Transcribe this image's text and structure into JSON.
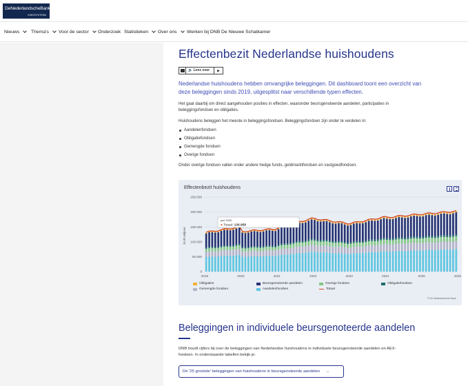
{
  "logo": {
    "name": "DeNederlandscheBank",
    "sub": "EUROSYSTEEM"
  },
  "nav": [
    {
      "label": "Nieuws",
      "dropdown": true
    },
    {
      "label": "Thema's",
      "dropdown": true
    },
    {
      "label": "Voor de sector",
      "dropdown": true
    },
    {
      "label": "Onderzoek",
      "dropdown": false
    },
    {
      "label": "Statistieken",
      "dropdown": true
    },
    {
      "label": "Over ons",
      "dropdown": true
    },
    {
      "label": "Werken bij DNB",
      "dropdown": false
    },
    {
      "label": "De Nieuwe Schatkamer",
      "dropdown": false
    }
  ],
  "page": {
    "title": "Effectenbezit Nederlandse huishoudens",
    "readspeaker": "Lees voor",
    "intro": "Nederlandse huishoudens hebben omvangrijke beleggingen. Dit dashboard toont een overzicht van deze beleggingen sinds 2019, uitgesplitst naar verschillende typen effecten.",
    "p1": "Het gaat daarbij om direct aangehouden posities in effecten, waaronder beursgenoteerde aandelen, participaties in beleggingsfondsen en obligaties.",
    "p2": "Huishoudens beleggen het meeste in beleggingsfondsen. Beleggingsfondsen zijn onder te verdelen in:",
    "list": [
      "Aandelenfondsen",
      "Obligatiefondsen",
      "Gemengde fondsen",
      "Overige fondsen"
    ],
    "p3": "Onder overige fondsen vallen onder andere hedge funds, geldmarktfondsen en vastgoedfondsen.",
    "h2": "Beleggingen in individuele beursgenoteerde aandelen",
    "p4": "DNB houdt cijfers bij over de beleggingen van Nederlandse huishoudens in individuele beursgenoteerde aandelen en AEX-fondsen. In onderstaande tabellen bekijk je:",
    "link": "De '25 grootste' beleggingen van huishoudens in beursgenoteerde aandelen",
    "link_arrow": "→"
  },
  "chart_data": {
    "type": "bar",
    "title": "Effectenbezit huishoudens",
    "ylabel": "EUR miljoen",
    "ylim": [
      0,
      250000
    ],
    "yticks": [
      "0",
      "50.000",
      "100.000",
      "150.000",
      "200.000",
      "250.000"
    ],
    "xticks": [
      "2019",
      "2020",
      "2021",
      "2022",
      "2023",
      "2024",
      "2025",
      "2026"
    ],
    "stacked": true,
    "frequency": "monthly, Jan 2019 – Dec 2025",
    "series": [
      {
        "name": "Aandelenfondsen",
        "color": "#5ec5e0"
      },
      {
        "name": "Gemengde fondsen",
        "color": "#b2b2c6"
      },
      {
        "name": "Overige fondsen",
        "color": "#82c785"
      },
      {
        "name": "Obligatiefondsen",
        "color": "#206b6b"
      },
      {
        "name": "Beursgenoteerde aandelen",
        "color": "#253372"
      },
      {
        "name": "Obligaties",
        "color": "#f2b134"
      }
    ],
    "total_line": {
      "name": "Totaal",
      "color": "#d3451e"
    },
    "legend_order": [
      "Obligaties",
      "Beursgenoteerde aandelen",
      "Overige fondsen",
      "Obligatiefondsen",
      "Gemengde fondsen",
      "Aandelenfondsen",
      "Totaal"
    ],
    "total_by_year": {
      "2019": [
        132000,
        150000
      ],
      "2020": [
        135000,
        143000
      ],
      "2021": [
        148000,
        178000
      ],
      "2022": [
        178000,
        162000
      ],
      "2023": [
        162000,
        183000
      ],
      "2024": [
        182000,
        193000
      ],
      "2025": [
        193000,
        203000
      ]
    },
    "shares": {
      "Aandelenfondsen": 0.37,
      "Gemengde fondsen": 0.13,
      "Overige fondsen": 0.08,
      "Obligatiefondsen": 0.03,
      "Beursgenoteerde aandelen": 0.36,
      "Obligaties": 0.02
    },
    "tooltip": {
      "period": "juni 2020",
      "label": "Totaal:",
      "value": "136.958"
    },
    "credit": "© De Nederlandsche Bank"
  }
}
